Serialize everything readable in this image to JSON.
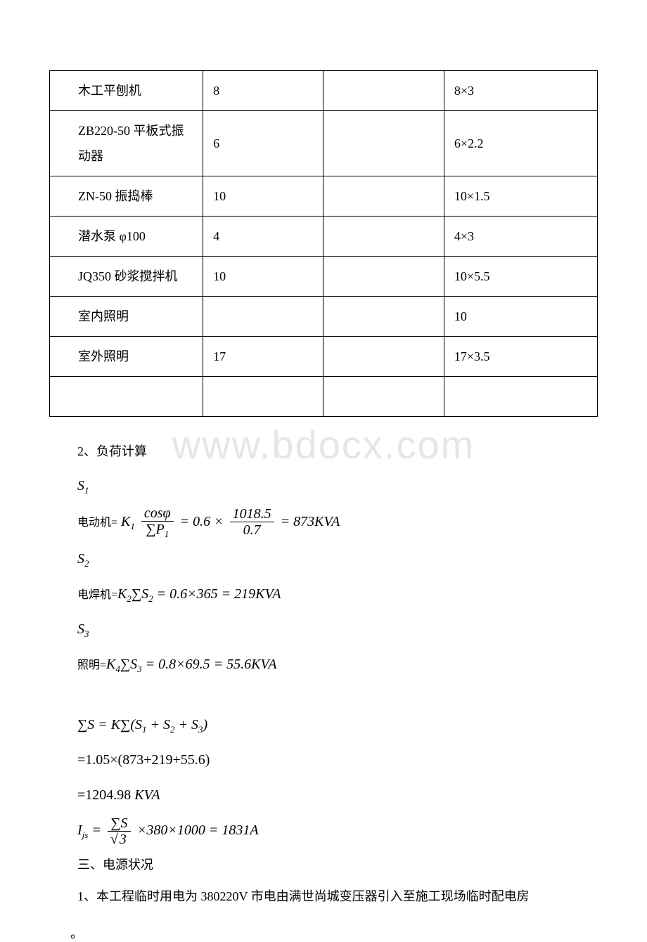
{
  "table": {
    "rows": [
      {
        "c1": "木工平刨机",
        "c2": "8",
        "c3": "",
        "c4": "8×3"
      },
      {
        "c1": "ZB220-50 平板式振动器",
        "c2": "6",
        "c3": "",
        "c4": "6×2.2"
      },
      {
        "c1": "ZN-50 振捣棒",
        "c2": "10",
        "c3": "",
        "c4": "10×1.5"
      },
      {
        "c1": "潜水泵 φ100",
        "c2": "4",
        "c3": "",
        "c4": "4×3"
      },
      {
        "c1": "JQ350 砂浆搅拌机",
        "c2": "10",
        "c3": "",
        "c4": "10×5.5"
      },
      {
        "c1": "室内照明",
        "c2": "",
        "c3": "",
        "c4": "10"
      },
      {
        "c1": "室外照明",
        "c2": "17",
        "c3": "",
        "c4": "17×3.5"
      },
      {
        "c1": "",
        "c2": "",
        "c3": "",
        "c4": ""
      }
    ],
    "border_color": "#000000",
    "fontsize": 18
  },
  "section_load": {
    "heading": "2、负荷计算",
    "s1_symbol": "S",
    "s1_sub": "1",
    "motor_label": "电动机=",
    "motor_formula": {
      "K": "K",
      "K_sub": "1",
      "frac1_num": "cosφ",
      "frac1_den": "∑P",
      "frac1_den_sub": "1",
      "eq": "= 0.6 ×",
      "frac2_num": "1018.5",
      "frac2_den": "0.7",
      "result": "= 873KVA"
    },
    "s2_symbol": "S",
    "s2_sub": "2",
    "weld_label": "电焊机=",
    "weld_formula": "K₂∑S₂ = 0.6×365 = 219KVA",
    "weld_K": "K",
    "weld_K_sub": "2",
    "weld_sum": "∑S",
    "weld_sum_sub": "2",
    "weld_rhs": " = 0.6×365 = 219KVA",
    "s3_symbol": "S",
    "s3_sub": "3",
    "light_label": "照明=",
    "light_K": "K",
    "light_K_sub": "4",
    "light_sum": "∑S",
    "light_sum_sub": "3",
    "light_rhs": " = 0.8×69.5 = 55.6KVA",
    "total_sum": "∑S = K∑(S₁ + S₂ + S₃)",
    "total_lhs": "∑S = K∑(S",
    "total_s1_sub": "1",
    "total_plus1": " + S",
    "total_s2_sub": "2",
    "total_plus2": " + S",
    "total_s3_sub": "3",
    "total_close": ")",
    "line2": "=1.05×(873+219+55.6)",
    "line3_val": "=1204.98 ",
    "line3_unit": "KVA",
    "current_I": "I",
    "current_I_sub": "js",
    "current_eq": " = ",
    "current_num": "∑S",
    "current_den_sqrt": "3",
    "current_rest": "×380×1000 = 1831A"
  },
  "section_power": {
    "heading": "三、电源状况",
    "para1": "1、本工程临时用电为 380220V 市电由满世尚城变压器引入至施工现场临时配电房",
    "tail": "。"
  },
  "watermark": "www.bdocx.com",
  "colors": {
    "text": "#000000",
    "background": "#ffffff",
    "watermark": "#e6e6e6"
  }
}
